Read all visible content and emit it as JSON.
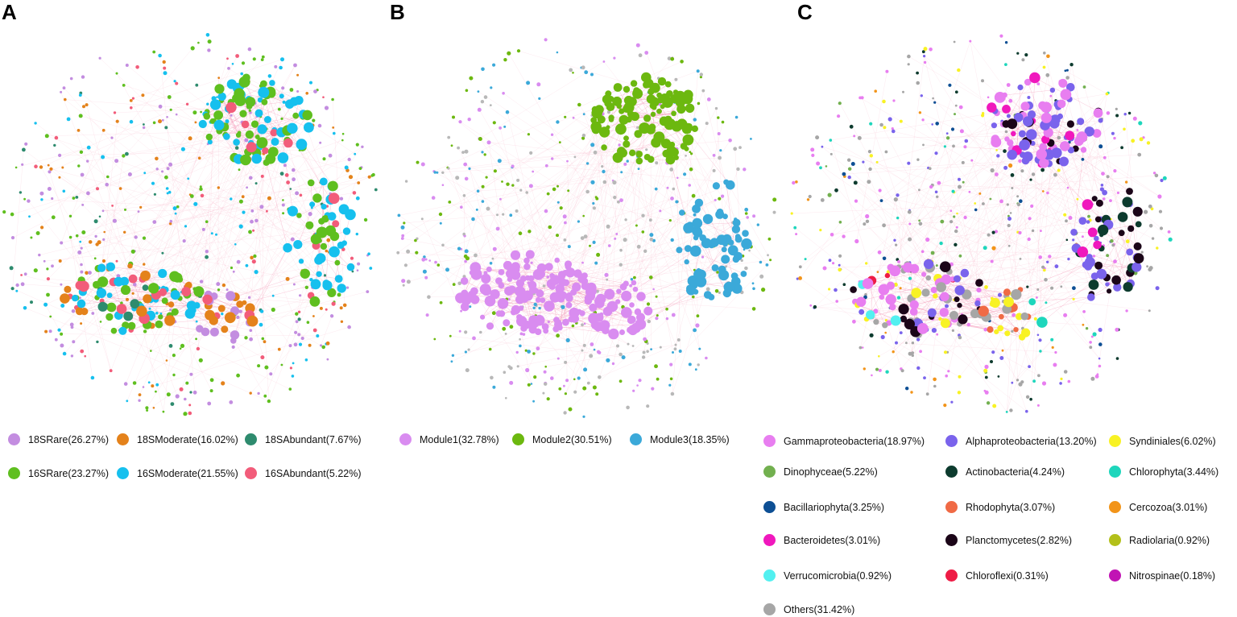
{
  "panels": [
    {
      "label": "A",
      "legend": [
        {
          "text": "18SRare(26.27%)",
          "color": "#c38de0"
        },
        {
          "text": "18SModerate(16.02%)",
          "color": "#e4821b"
        },
        {
          "text": "18SAbundant(7.67%)",
          "color": "#2e8b6e"
        },
        {
          "text": "16SRare(23.27%)",
          "color": "#5fbf1f"
        },
        {
          "text": "16SModerate(21.55%)",
          "color": "#16c0ee"
        },
        {
          "text": "16SAbundant(5.22%)",
          "color": "#f25c7a"
        }
      ]
    },
    {
      "label": "B",
      "legend": [
        {
          "text": "Module1(32.78%)",
          "color": "#d98cf0"
        },
        {
          "text": "Module2(30.51%)",
          "color": "#6cb80f"
        },
        {
          "text": "Module3(18.35%)",
          "color": "#3ba9d9"
        }
      ]
    },
    {
      "label": "C",
      "legend": [
        {
          "text": "Gammaproteobacteria(18.97%)",
          "color": "#e87ef0"
        },
        {
          "text": "Alphaproteobacteria(13.20%)",
          "color": "#7a63ec"
        },
        {
          "text": "Syndiniales(6.02%)",
          "color": "#f8f224"
        },
        {
          "text": "Dinophyceae(5.22%)",
          "color": "#72b04f"
        },
        {
          "text": "Actinobacteria(4.24%)",
          "color": "#0d3b2e"
        },
        {
          "text": "Chlorophyta(3.44%)",
          "color": "#1ed6bc"
        },
        {
          "text": "Bacillariophyta(3.25%)",
          "color": "#0d4f94"
        },
        {
          "text": "Rhodophyta(3.07%)",
          "color": "#f06a45"
        },
        {
          "text": "Cercozoa(3.01%)",
          "color": "#f29419"
        },
        {
          "text": "Bacteroidetes(3.01%)",
          "color": "#f018bd"
        },
        {
          "text": "Planctomycetes(2.82%)",
          "color": "#1b0518"
        },
        {
          "text": "Radiolaria(0.92%)",
          "color": "#b3c01a"
        },
        {
          "text": "Verrucomicrobia(0.92%)",
          "color": "#52f0f0"
        },
        {
          "text": "Chloroflexi(0.31%)",
          "color": "#ee1c45"
        },
        {
          "text": "Nitrospinae(0.18%)",
          "color": "#c113b4"
        },
        {
          "text": "Others(31.42%)",
          "color": "#a6a6a6"
        }
      ]
    }
  ],
  "edge_color": "#f48fb1"
}
